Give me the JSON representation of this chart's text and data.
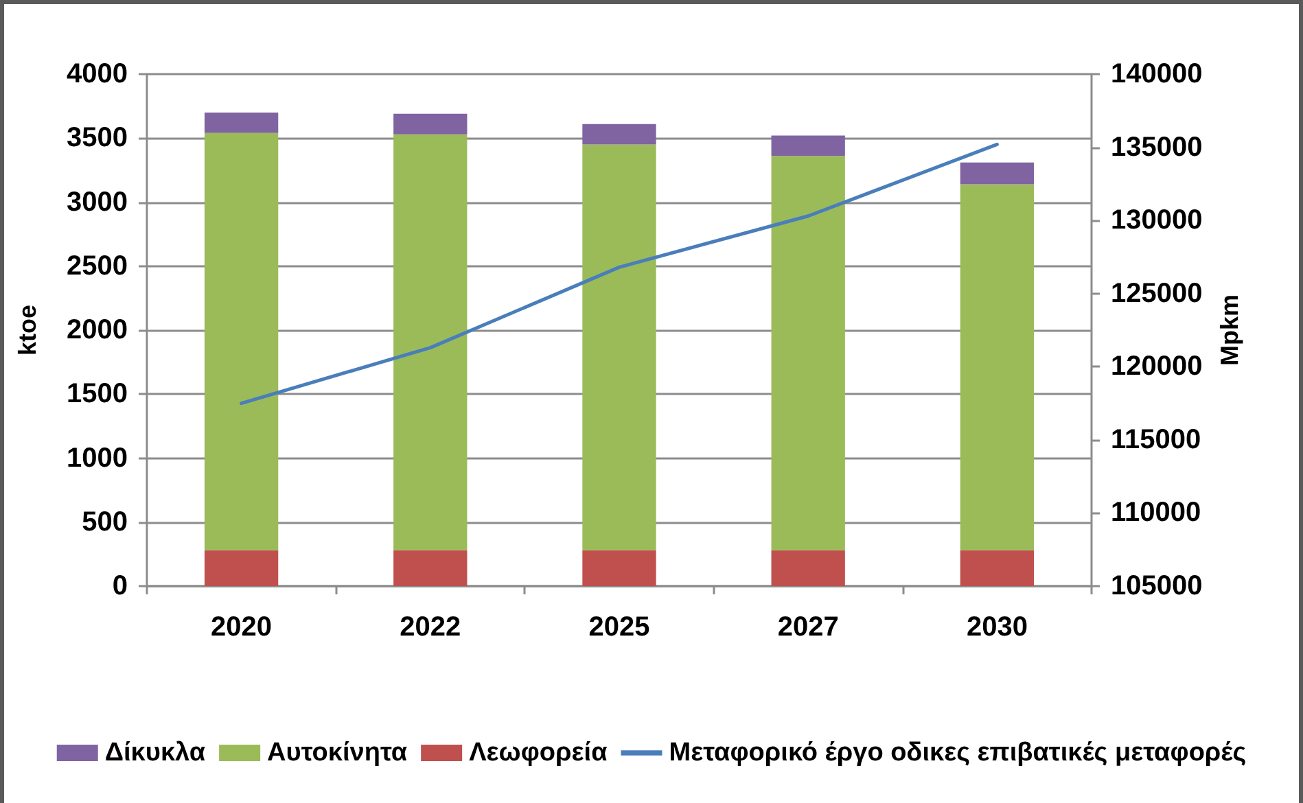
{
  "chart_data": {
    "type": "bar",
    "categories": [
      "2020",
      "2022",
      "2025",
      "2027",
      "2030"
    ],
    "ylabel": "ktoe",
    "y2label": "Mpkm",
    "stacked": true,
    "ylim": [
      0,
      4000
    ],
    "yticks": [
      0,
      500,
      1000,
      1500,
      2000,
      2500,
      3000,
      3500,
      4000
    ],
    "y2lim": [
      105000,
      140000
    ],
    "y2ticks": [
      105000,
      110000,
      115000,
      120000,
      125000,
      130000,
      135000,
      140000
    ],
    "grid": "y",
    "legend": "bottom",
    "series": [
      {
        "name": "Λεωφορεία",
        "color": "#c0504d",
        "values": [
          280,
          280,
          280,
          280,
          280
        ]
      },
      {
        "name": "Αυτοκίνητα",
        "color": "#9bbb59",
        "values": [
          3260,
          3250,
          3170,
          3080,
          2860
        ]
      },
      {
        "name": "Δίκυκλα",
        "color": "#8064a2",
        "values": [
          160,
          160,
          160,
          160,
          170
        ]
      },
      {
        "name": "Μεταφορικό έργο οδικες επιβατικές μεταφορές",
        "type": "line",
        "axis": "y2",
        "color": "#4a7ebb",
        "values": [
          117500,
          121300,
          126800,
          130300,
          135200
        ]
      }
    ]
  }
}
